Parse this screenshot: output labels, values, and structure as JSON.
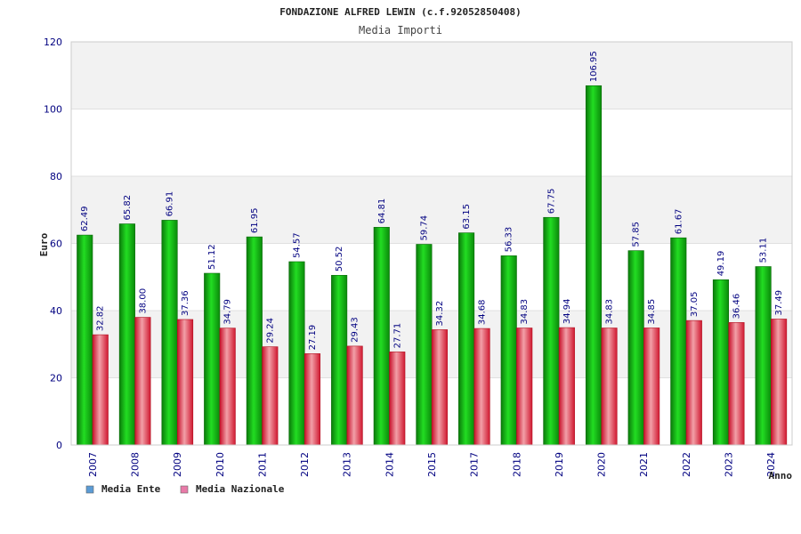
{
  "chart_data": {
    "type": "bar",
    "title": "FONDAZIONE ALFRED LEWIN (c.f.92052850408)",
    "subtitle": "Media Importi",
    "ylabel": "Euro",
    "xlabel": "Anno",
    "ylim": [
      0,
      120
    ],
    "yticks": [
      0,
      20,
      40,
      60,
      80,
      100,
      120
    ],
    "grid": true,
    "legend_position": "bottom-left",
    "categories": [
      "2007",
      "2008",
      "2009",
      "2010",
      "2011",
      "2012",
      "2013",
      "2014",
      "2015",
      "2017",
      "2018",
      "2019",
      "2020",
      "2021",
      "2022",
      "2023",
      "2024"
    ],
    "series": [
      {
        "name": "Media Ente",
        "legend_color": "#5b9bd5",
        "bar_color": "#12b812",
        "values": [
          62.49,
          65.82,
          66.91,
          51.12,
          61.95,
          54.57,
          50.52,
          64.81,
          59.74,
          63.15,
          56.33,
          67.75,
          106.95,
          57.85,
          61.67,
          49.19,
          53.11
        ],
        "labels": [
          "62.49",
          "65.82",
          "66.91",
          "51.12",
          "61.95",
          "54.57",
          "50.52",
          "64.81",
          "59.74",
          "63.15",
          "56.33",
          "67.75",
          "106.95",
          "57.85",
          "61.67",
          "49.19",
          "53.11"
        ]
      },
      {
        "name": "Media Nazionale",
        "legend_color": "#e87aa8",
        "bar_color": "#e23040",
        "values": [
          32.82,
          38.0,
          37.36,
          34.79,
          29.24,
          27.19,
          29.43,
          27.71,
          34.32,
          34.68,
          34.83,
          34.94,
          34.83,
          34.85,
          37.05,
          36.46,
          37.49
        ],
        "labels": [
          "32.82",
          "38.00",
          "37.36",
          "34.79",
          "29.24",
          "27.19",
          "29.43",
          "27.71",
          "34.32",
          "34.68",
          "34.83",
          "34.94",
          "34.83",
          "34.85",
          "37.05",
          "36.46",
          "37.49"
        ]
      }
    ]
  }
}
